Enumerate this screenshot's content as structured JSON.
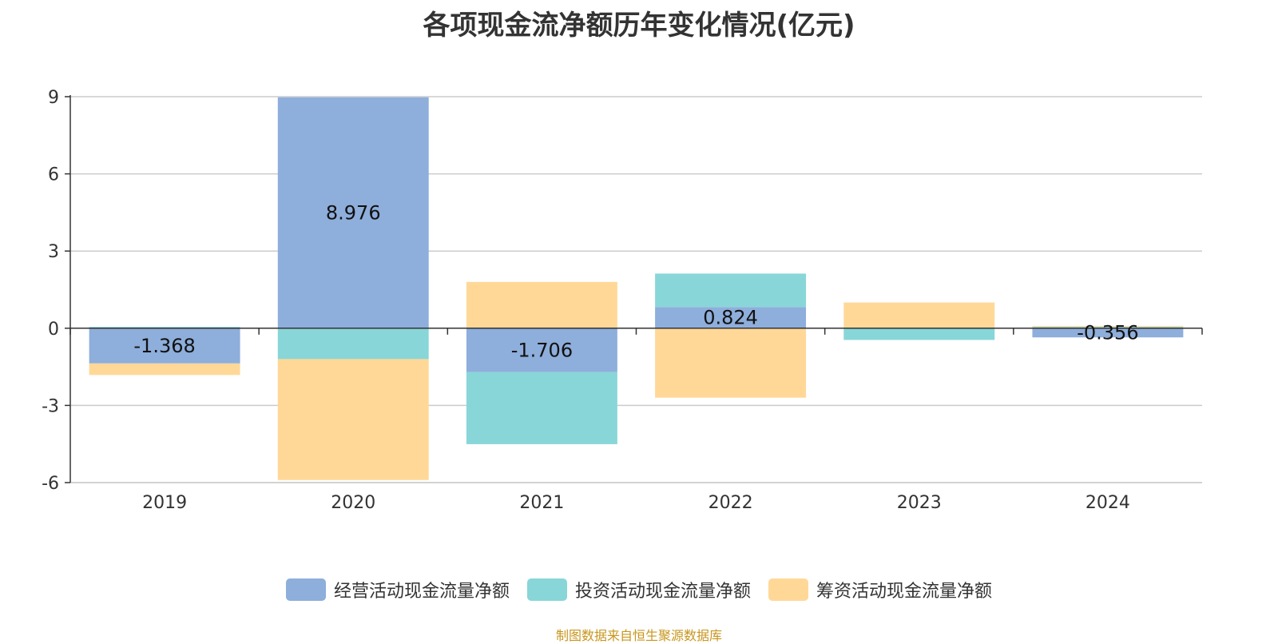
{
  "chart_data": {
    "type": "bar",
    "stacked": true,
    "title": "各项现金流净额历年变化情况(亿元)",
    "categories": [
      "2019",
      "2020",
      "2021",
      "2022",
      "2023",
      "2024"
    ],
    "series": [
      {
        "name": "经营活动现金流量净额",
        "color": "#8eaedb",
        "values": [
          -1.368,
          8.976,
          -1.706,
          0.824,
          -0.005,
          -0.356
        ],
        "labels": [
          "-1.368",
          "8.976",
          "-1.706",
          "0.824",
          "",
          "-0.356"
        ]
      },
      {
        "name": "投资活动现金流量净额",
        "color": "#88d6d8",
        "values": [
          0.05,
          -1.2,
          -2.8,
          1.3,
          -0.45,
          0.05
        ]
      },
      {
        "name": "筹资活动现金流量净额",
        "color": "#ffd898",
        "values": [
          -0.45,
          -4.7,
          1.8,
          -2.7,
          1.0,
          0.04
        ]
      }
    ],
    "yticks": [
      "9",
      "6",
      "3",
      "0",
      "-3",
      "-6"
    ],
    "ylim": [
      -6,
      9
    ],
    "grid": true,
    "legend_position": "bottom"
  },
  "source": "制图数据来自恒生聚源数据库"
}
